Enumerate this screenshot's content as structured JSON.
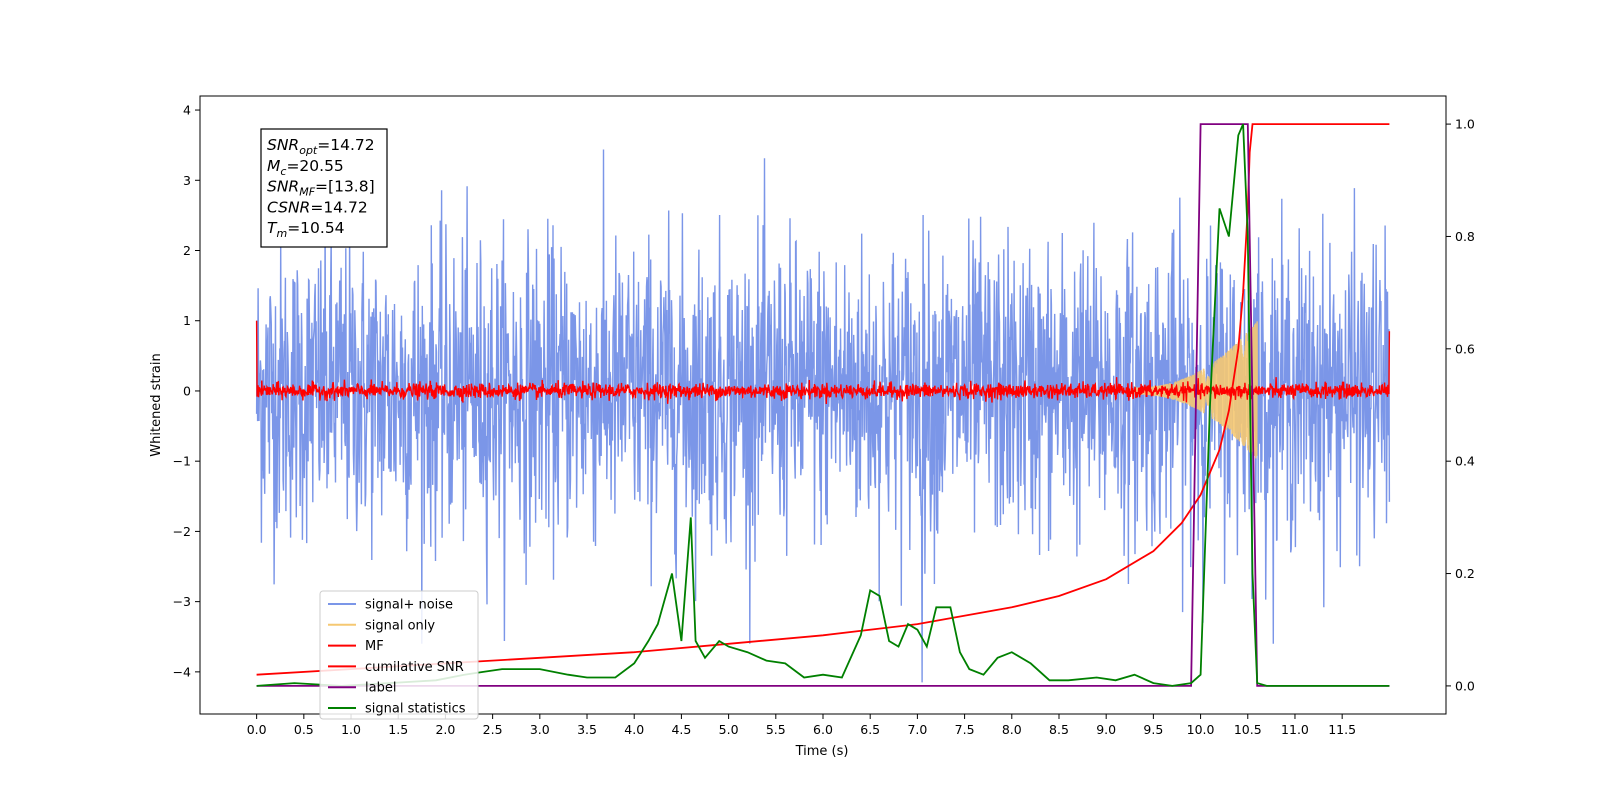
{
  "chart_data": {
    "type": "line",
    "title": "",
    "xlabel": "Time (s)",
    "ylabel": "Whitened strain",
    "ylabel_right": "",
    "xlim": [
      -0.6,
      12.6
    ],
    "ylim": [
      -4.6,
      4.2
    ],
    "ylim_right": [
      -0.05,
      1.05
    ],
    "grid": false,
    "legend_placement": "lower-left",
    "x_ticks": [
      "0.0",
      "0.5",
      "1.0",
      "1.5",
      "2.0",
      "2.5",
      "3.0",
      "3.5",
      "4.0",
      "4.5",
      "5.0",
      "5.5",
      "6.0",
      "6.5",
      "7.0",
      "7.5",
      "8.0",
      "8.5",
      "9.0",
      "9.5",
      "10.0",
      "10.5",
      "11.0",
      "11.5"
    ],
    "y_ticks": [
      "4",
      "3",
      "2",
      "1",
      "0",
      "−1",
      "−2",
      "−3",
      "−4"
    ],
    "y_ticks_right": [
      "1.0",
      "0.8",
      "0.6",
      "0.4",
      "0.2",
      "0.0"
    ],
    "annotation": [
      {
        "base": "SNR",
        "sub": "opt",
        "value": "=14.72"
      },
      {
        "base": "M",
        "sub": "c",
        "value": "=20.55"
      },
      {
        "base": "SNR",
        "sub": "MF",
        "value": "=[13.8]"
      },
      {
        "base": "CSNR",
        "sub": "",
        "value": "=14.72"
      },
      {
        "base": "T",
        "sub": "m",
        "value": "=10.54"
      }
    ],
    "series": [
      {
        "name": "signal+ noise",
        "color": "#7b96e8",
        "axis": "left",
        "description_values": {
          "x_range": [
            0.0,
            12.0
          ],
          "mean": 0.0,
          "envelope_abs_max": 3.6,
          "spike_low": {
            "x": 7.05,
            "y": -4.15
          }
        }
      },
      {
        "name": "signal only",
        "color": "#f5c872",
        "axis": "left",
        "description_values": {
          "x_range": [
            9.3,
            10.6
          ],
          "envelope_start": 0.05,
          "envelope_end": 1.0
        }
      },
      {
        "name": "MF",
        "color": "#ff0000",
        "axis": "left",
        "description_values": {
          "x_range": [
            0.0,
            12.0
          ],
          "mean": 0.0,
          "noise_amp": 0.1,
          "start_y": 1.0,
          "end_y": 0.85
        }
      },
      {
        "name": "cumilative SNR",
        "color": "#ff0000",
        "axis": "right",
        "x": [
          0.0,
          1.0,
          2.0,
          3.0,
          4.0,
          5.0,
          6.0,
          7.0,
          8.0,
          8.5,
          9.0,
          9.5,
          9.8,
          10.0,
          10.2,
          10.3,
          10.4,
          10.45,
          10.5,
          10.52,
          10.55,
          12.0
        ],
        "values": [
          0.02,
          0.03,
          0.04,
          0.05,
          0.06,
          0.075,
          0.09,
          0.11,
          0.14,
          0.16,
          0.19,
          0.24,
          0.29,
          0.34,
          0.42,
          0.49,
          0.6,
          0.7,
          0.85,
          0.95,
          1.0,
          1.0
        ]
      },
      {
        "name": "label",
        "color": "#800080",
        "axis": "right",
        "x": [
          0.0,
          9.9,
          10.0,
          10.5,
          10.6,
          12.0
        ],
        "values": [
          0.0,
          0.0,
          1.0,
          1.0,
          0.0,
          0.0
        ]
      },
      {
        "name": "signal statistics",
        "color": "#008000",
        "axis": "right",
        "x": [
          0.0,
          0.4,
          0.9,
          1.4,
          1.9,
          2.2,
          2.4,
          2.6,
          2.8,
          3.0,
          3.3,
          3.5,
          3.8,
          4.0,
          4.15,
          4.25,
          4.4,
          4.5,
          4.6,
          4.65,
          4.75,
          4.9,
          5.0,
          5.2,
          5.4,
          5.6,
          5.8,
          6.0,
          6.2,
          6.4,
          6.5,
          6.6,
          6.7,
          6.8,
          6.9,
          7.0,
          7.1,
          7.2,
          7.35,
          7.45,
          7.55,
          7.7,
          7.85,
          8.0,
          8.2,
          8.4,
          8.6,
          8.9,
          9.1,
          9.3,
          9.5,
          9.7,
          9.9,
          10.0,
          10.1,
          10.2,
          10.3,
          10.4,
          10.45,
          10.5,
          10.55,
          10.6,
          10.7,
          11.0,
          12.0
        ],
        "values": [
          0.0,
          0.005,
          0.0,
          0.005,
          0.01,
          0.02,
          0.025,
          0.03,
          0.03,
          0.03,
          0.02,
          0.015,
          0.015,
          0.04,
          0.08,
          0.11,
          0.2,
          0.08,
          0.3,
          0.08,
          0.05,
          0.08,
          0.07,
          0.06,
          0.045,
          0.04,
          0.015,
          0.02,
          0.015,
          0.09,
          0.17,
          0.16,
          0.08,
          0.07,
          0.11,
          0.1,
          0.07,
          0.14,
          0.14,
          0.06,
          0.03,
          0.02,
          0.05,
          0.06,
          0.04,
          0.01,
          0.01,
          0.015,
          0.01,
          0.02,
          0.005,
          0.0,
          0.005,
          0.02,
          0.5,
          0.85,
          0.8,
          0.98,
          1.0,
          0.8,
          0.2,
          0.005,
          0.0,
          0.0,
          0.0
        ]
      }
    ]
  }
}
